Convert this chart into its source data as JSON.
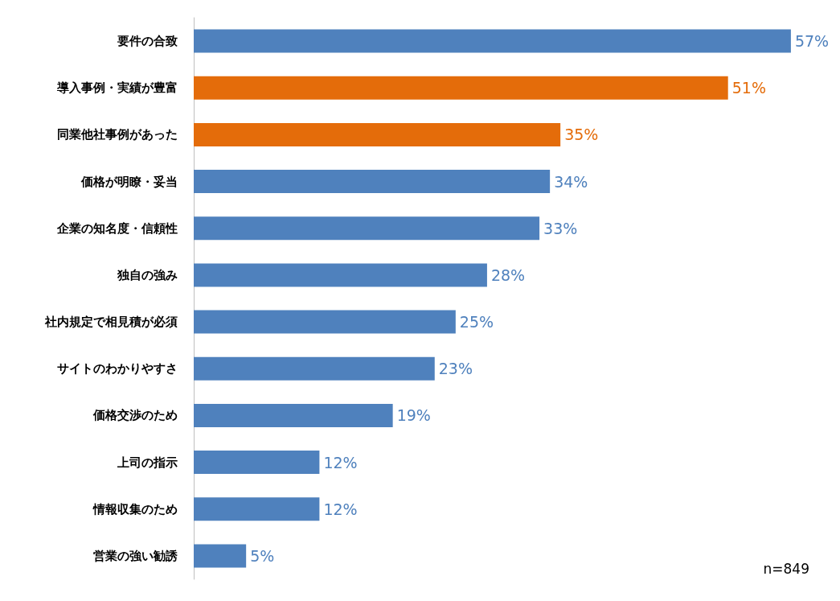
{
  "chart_data": {
    "type": "bar",
    "orientation": "horizontal",
    "categories": [
      "要件の合致",
      "導入事例・実績が豊富",
      "同業他社事例があった",
      "価格が明瞭・妥当",
      "企業の知名度・信頼性",
      "独自の強み",
      "社内規定で相見積が必須",
      "サイトのわかりやすさ",
      "価格交渉のため",
      "上司の指示",
      "情報収集のため",
      "営業の強い勧誘"
    ],
    "values": [
      57,
      51,
      35,
      34,
      33,
      28,
      25,
      23,
      19,
      12,
      12,
      5
    ],
    "value_labels": [
      "57%",
      "51%",
      "35%",
      "34%",
      "33%",
      "28%",
      "25%",
      "23%",
      "19%",
      "12%",
      "12%",
      "5%"
    ],
    "colors": [
      "#4f81bd",
      "#e46c0a",
      "#e46c0a",
      "#4f81bd",
      "#4f81bd",
      "#4f81bd",
      "#4f81bd",
      "#4f81bd",
      "#4f81bd",
      "#4f81bd",
      "#4f81bd",
      "#4f81bd"
    ],
    "annotations": [
      "n=849"
    ]
  }
}
